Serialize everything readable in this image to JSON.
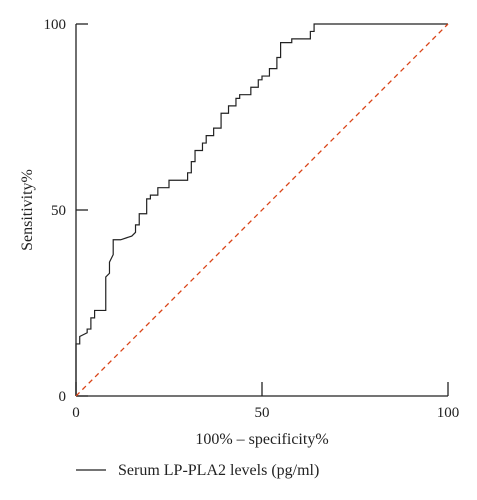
{
  "chart_data": {
    "type": "line",
    "xlabel": "100% – specificity%",
    "ylabel": "Sensitivity%",
    "xlim": [
      0,
      100
    ],
    "ylim": [
      0,
      100
    ],
    "x_ticks": [
      0,
      50,
      100
    ],
    "y_ticks": [
      0,
      50,
      100
    ],
    "x_tick_labels": [
      "0",
      "50",
      "100"
    ],
    "y_tick_labels": [
      "0",
      "50",
      "100"
    ],
    "grid": false,
    "legend_position": "bottom",
    "series": [
      {
        "name": "Serum LP-PLA2 levels (pg/ml)",
        "color": "#222222",
        "style": "solid",
        "x": [
          0,
          0,
          1,
          1,
          3,
          3,
          4,
          4,
          5,
          5,
          8,
          8,
          9,
          9,
          10,
          10,
          12,
          15,
          16,
          16,
          17,
          17,
          19,
          19,
          20,
          20,
          22,
          22,
          25,
          25,
          30,
          30,
          31,
          31,
          32,
          32,
          34,
          34,
          35,
          35,
          37,
          37,
          39,
          39,
          41,
          41,
          43,
          43,
          44,
          44,
          47,
          47,
          49,
          49,
          50,
          50,
          52,
          52,
          54,
          54,
          55,
          55,
          58,
          58,
          63,
          63,
          64,
          64,
          100
        ],
        "y": [
          0,
          14,
          14,
          16,
          17,
          18,
          18,
          21,
          21,
          23,
          23,
          32,
          33,
          36,
          38,
          42,
          42,
          43,
          44,
          46,
          46,
          49,
          49,
          53,
          53,
          54,
          54,
          56,
          56,
          58,
          58,
          60,
          60,
          63,
          63,
          66,
          66,
          68,
          68,
          70,
          70,
          72,
          72,
          76,
          76,
          78,
          78,
          80,
          80,
          81,
          81,
          83,
          83,
          85,
          85,
          86,
          86,
          88,
          88,
          91,
          91,
          95,
          95,
          96,
          96,
          98,
          98,
          100,
          100
        ]
      },
      {
        "name": "",
        "color": "#d94418",
        "style": "dashed",
        "x": [
          0,
          100
        ],
        "y": [
          0,
          100
        ]
      }
    ]
  }
}
